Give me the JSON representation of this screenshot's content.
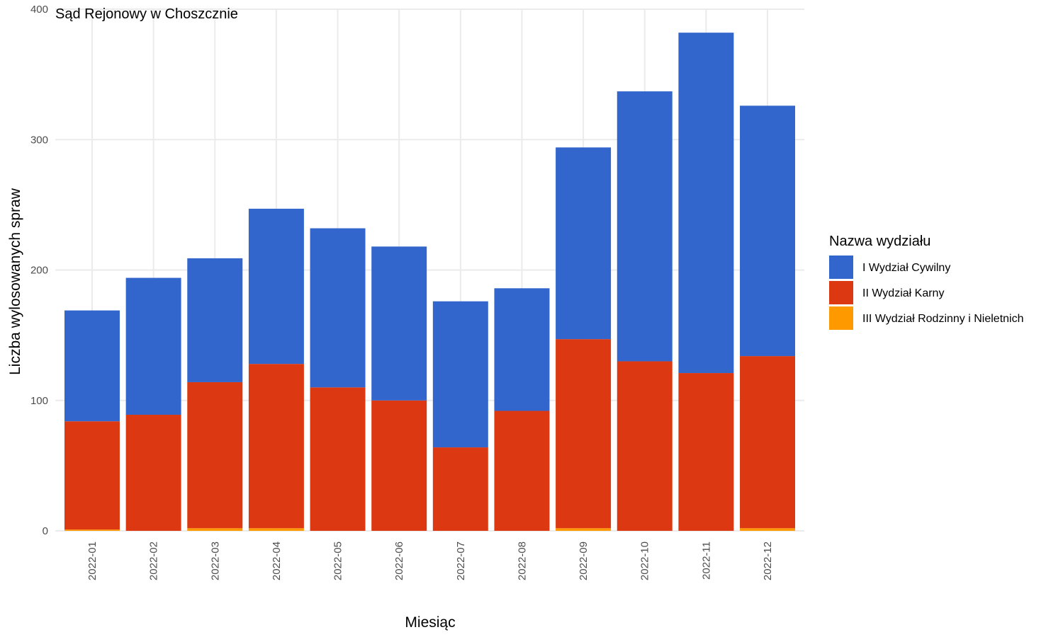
{
  "chart_data": {
    "type": "bar",
    "stacked": true,
    "title": "Sąd Rejonowy w Choszcznie",
    "xlabel": "Miesiąc",
    "ylabel": "Liczba wylosowanych spraw",
    "ylim": [
      0,
      400
    ],
    "yticks": [
      0,
      100,
      200,
      300,
      400
    ],
    "grid": true,
    "legend_title": "Nazwa wydziału",
    "legend_position": "right",
    "categories": [
      "2022-01",
      "2022-02",
      "2022-03",
      "2022-04",
      "2022-05",
      "2022-06",
      "2022-07",
      "2022-08",
      "2022-09",
      "2022-10",
      "2022-11",
      "2022-12"
    ],
    "series": [
      {
        "name": "III Wydział Rodzinny i Nieletnich",
        "color": "#FF9900",
        "values": [
          1,
          0,
          2,
          2,
          0,
          0,
          0,
          0,
          2,
          0,
          0,
          2
        ]
      },
      {
        "name": "II Wydział Karny",
        "color": "#DC3912",
        "values": [
          83,
          89,
          112,
          126,
          110,
          100,
          64,
          92,
          145,
          130,
          121,
          132
        ]
      },
      {
        "name": "I Wydział Cywilny",
        "color": "#3366CC",
        "values": [
          85,
          105,
          95,
          119,
          122,
          118,
          112,
          94,
          147,
          207,
          261,
          192
        ]
      }
    ],
    "legend_order": [
      "I Wydział Cywilny",
      "II Wydział Karny",
      "III Wydział Rodzinny i Nieletnich"
    ]
  }
}
